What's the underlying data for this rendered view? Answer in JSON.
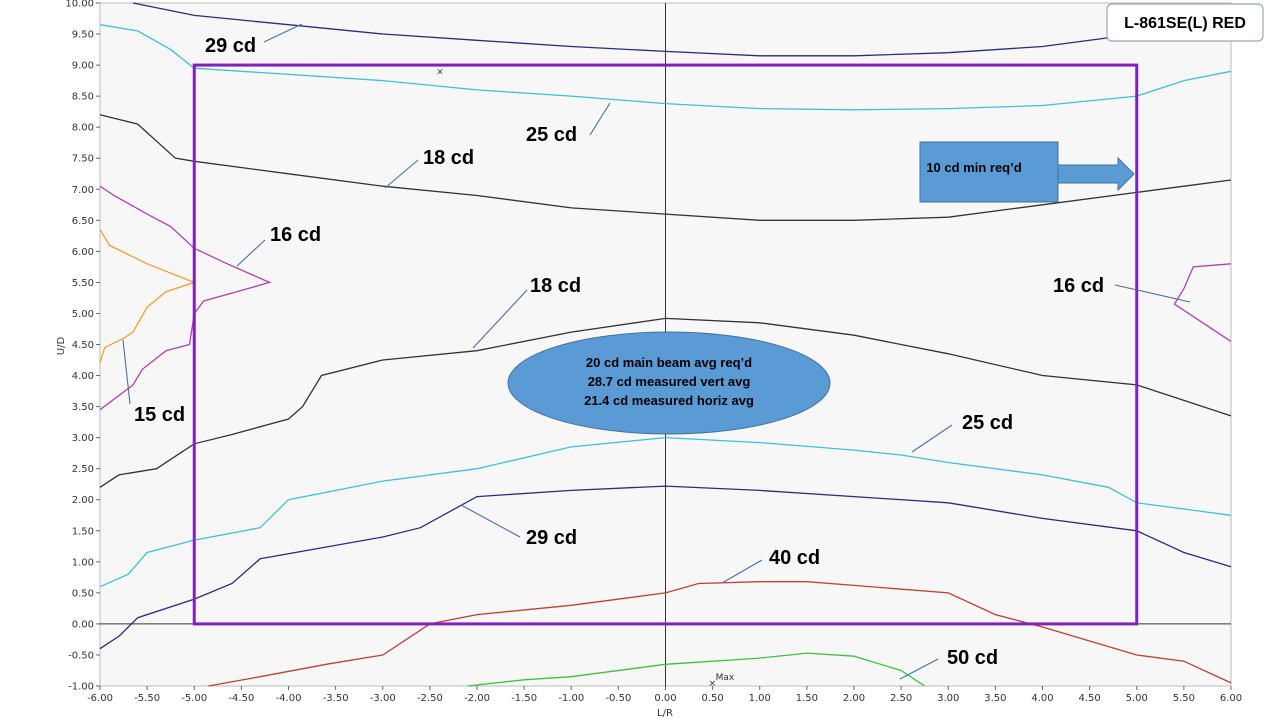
{
  "chart_data": {
    "type": "line",
    "title": "L-861SE(L) RED",
    "xlabel": "L/R",
    "ylabel": "U/D",
    "xlim": [
      -6,
      6
    ],
    "ylim": [
      -1,
      10
    ],
    "x_ticks": [
      "-6.00",
      "-5.50",
      "-5.00",
      "-4.50",
      "-4.00",
      "-3.50",
      "-3.00",
      "-2.50",
      "-2.00",
      "-1.50",
      "-1.00",
      "-0.50",
      "0.00",
      "0.50",
      "1.00",
      "1.50",
      "2.00",
      "2.50",
      "3.00",
      "3.50",
      "4.00",
      "4.50",
      "5.00",
      "5.50",
      "6.00"
    ],
    "y_ticks": [
      "-1.00",
      "-0.50",
      "0.00",
      "0.50",
      "1.00",
      "1.50",
      "2.00",
      "2.50",
      "3.00",
      "3.50",
      "4.00",
      "4.50",
      "5.00",
      "5.50",
      "6.00",
      "6.50",
      "7.00",
      "7.50",
      "8.00",
      "8.50",
      "9.00",
      "9.50",
      "10.00"
    ],
    "grid": false,
    "series": [
      {
        "name": "29 cd",
        "color": "#2b2b80",
        "points": [
          [
            -5.65,
            10
          ],
          [
            -5,
            9.8
          ],
          [
            -4,
            9.65
          ],
          [
            -3,
            9.5
          ],
          [
            -2,
            9.4
          ],
          [
            -1,
            9.3
          ],
          [
            0,
            9.22
          ],
          [
            1,
            9.15
          ],
          [
            2,
            9.15
          ],
          [
            3,
            9.2
          ],
          [
            4,
            9.3
          ],
          [
            5,
            9.5
          ],
          [
            5.4,
            9.6
          ]
        ]
      },
      {
        "name": "25 cd",
        "color": "#3ec0d8",
        "points": [
          [
            -6,
            9.65
          ],
          [
            -5.6,
            9.55
          ],
          [
            -5.25,
            9.25
          ],
          [
            -5,
            8.95
          ],
          [
            -4,
            8.85
          ],
          [
            -3,
            8.75
          ],
          [
            -2,
            8.6
          ],
          [
            -1,
            8.5
          ],
          [
            0,
            8.38
          ],
          [
            1,
            8.3
          ],
          [
            2,
            8.28
          ],
          [
            3,
            8.3
          ],
          [
            4,
            8.35
          ],
          [
            5,
            8.5
          ],
          [
            5.5,
            8.75
          ],
          [
            6,
            8.9
          ]
        ]
      },
      {
        "name": "18 cd",
        "color": "#333333",
        "points": [
          [
            -6,
            8.2
          ],
          [
            -5.6,
            8.05
          ],
          [
            -5.2,
            7.5
          ],
          [
            -5,
            7.45
          ],
          [
            -4,
            7.25
          ],
          [
            -3,
            7.05
          ],
          [
            -2,
            6.9
          ],
          [
            -1,
            6.7
          ],
          [
            0,
            6.6
          ],
          [
            1,
            6.5
          ],
          [
            2,
            6.5
          ],
          [
            3,
            6.55
          ],
          [
            4,
            6.75
          ],
          [
            5,
            6.95
          ],
          [
            5.5,
            7.05
          ],
          [
            6,
            7.15
          ]
        ]
      },
      {
        "name": "16 cd",
        "color": "#b040b0",
        "points": [
          [
            -6,
            7.05
          ],
          [
            -5.85,
            6.9
          ],
          [
            -5.5,
            6.6
          ],
          [
            -5.25,
            6.4
          ],
          [
            -5,
            6.05
          ],
          [
            -4.65,
            5.8
          ],
          [
            -4.2,
            5.5
          ],
          [
            -4.55,
            5.35
          ],
          [
            -4.9,
            5.2
          ],
          [
            -5,
            5.0
          ],
          [
            -5.05,
            4.5
          ],
          [
            -5.3,
            4.4
          ],
          [
            -5.55,
            4.1
          ],
          [
            -5.65,
            3.85
          ],
          [
            -6,
            3.45
          ]
        ]
      },
      {
        "name": "15 cd",
        "color": "#f0a030",
        "points": [
          [
            -6,
            6.35
          ],
          [
            -5.9,
            6.1
          ],
          [
            -5.5,
            5.8
          ],
          [
            -5.0,
            5.5
          ],
          [
            -5.3,
            5.35
          ],
          [
            -5.5,
            5.1
          ],
          [
            -5.65,
            4.7
          ],
          [
            -5.75,
            4.6
          ],
          [
            -5.95,
            4.45
          ],
          [
            -6,
            4.2
          ]
        ]
      },
      {
        "name": "16 cd",
        "color": "#b040b0",
        "points": [
          [
            6,
            5.8
          ],
          [
            5.6,
            5.75
          ],
          [
            5.5,
            5.4
          ],
          [
            5.4,
            5.15
          ],
          [
            5.6,
            4.95
          ],
          [
            6,
            4.55
          ]
        ]
      },
      {
        "name": "18 cd",
        "color": "#333333",
        "points": [
          [
            -6,
            2.2
          ],
          [
            -5.8,
            2.4
          ],
          [
            -5.4,
            2.5
          ],
          [
            -5,
            2.9
          ],
          [
            -4.6,
            3.05
          ],
          [
            -4,
            3.3
          ],
          [
            -3.85,
            3.5
          ],
          [
            -3.65,
            4.0
          ],
          [
            -3,
            4.25
          ],
          [
            -2,
            4.4
          ],
          [
            -1,
            4.7
          ],
          [
            0,
            4.92
          ],
          [
            1,
            4.85
          ],
          [
            2,
            4.65
          ],
          [
            3,
            4.35
          ],
          [
            4,
            4.0
          ],
          [
            5,
            3.85
          ],
          [
            5.5,
            3.6
          ],
          [
            6,
            3.35
          ]
        ]
      },
      {
        "name": "25 cd",
        "color": "#3ec0d8",
        "points": [
          [
            -6,
            0.6
          ],
          [
            -5.7,
            0.8
          ],
          [
            -5.5,
            1.15
          ],
          [
            -5,
            1.35
          ],
          [
            -4.3,
            1.55
          ],
          [
            -4,
            2.0
          ],
          [
            -3,
            2.3
          ],
          [
            -2,
            2.5
          ],
          [
            -1,
            2.85
          ],
          [
            0,
            3.0
          ],
          [
            1,
            2.92
          ],
          [
            2,
            2.8
          ],
          [
            2.5,
            2.72
          ],
          [
            3,
            2.6
          ],
          [
            4,
            2.4
          ],
          [
            4.7,
            2.2
          ],
          [
            5,
            1.95
          ],
          [
            5.5,
            1.85
          ],
          [
            6,
            1.75
          ]
        ]
      },
      {
        "name": "29 cd",
        "color": "#2b2b80",
        "points": [
          [
            -6,
            -0.4
          ],
          [
            -5.8,
            -0.2
          ],
          [
            -5.6,
            0.1
          ],
          [
            -5,
            0.4
          ],
          [
            -4.6,
            0.65
          ],
          [
            -4.3,
            1.05
          ],
          [
            -3,
            1.4
          ],
          [
            -2.6,
            1.55
          ],
          [
            -2,
            2.05
          ],
          [
            -1,
            2.15
          ],
          [
            0,
            2.22
          ],
          [
            1,
            2.15
          ],
          [
            2,
            2.05
          ],
          [
            3,
            1.95
          ],
          [
            4,
            1.7
          ],
          [
            5,
            1.5
          ],
          [
            5.5,
            1.15
          ],
          [
            6,
            0.92
          ]
        ]
      },
      {
        "name": "40 cd",
        "color": "#c04030",
        "points": [
          [
            -4.85,
            -1
          ],
          [
            -4.3,
            -0.85
          ],
          [
            -3.6,
            -0.65
          ],
          [
            -3,
            -0.5
          ],
          [
            -2.5,
            0.0
          ],
          [
            -2,
            0.15
          ],
          [
            -1,
            0.3
          ],
          [
            0,
            0.5
          ],
          [
            0.35,
            0.65
          ],
          [
            1,
            0.68
          ],
          [
            1.5,
            0.68
          ],
          [
            2,
            0.62
          ],
          [
            3,
            0.5
          ],
          [
            3.5,
            0.15
          ],
          [
            4,
            -0.05
          ],
          [
            5,
            -0.5
          ],
          [
            5.5,
            -0.6
          ],
          [
            6,
            -0.95
          ]
        ]
      },
      {
        "name": "50 cd",
        "color": "#40c040",
        "points": [
          [
            -2.1,
            -1
          ],
          [
            -1.5,
            -0.9
          ],
          [
            -1,
            -0.85
          ],
          [
            0,
            -0.65
          ],
          [
            1,
            -0.55
          ],
          [
            1.5,
            -0.47
          ],
          [
            2,
            -0.52
          ],
          [
            2.5,
            -0.75
          ],
          [
            2.75,
            -1
          ]
        ]
      }
    ],
    "annotations": [
      "29 cd",
      "25 cd",
      "18 cd",
      "16 cd",
      "18 cd",
      "16 cd",
      "15 cd",
      "25 cd",
      "29 cd",
      "40 cd",
      "50 cd"
    ],
    "max_marker": {
      "label": "Max",
      "x": 0.5,
      "y": -0.95
    },
    "x_marker": {
      "label": "×",
      "x": -2.4,
      "y": 8.9
    },
    "requirement_box": {
      "x": [
        -5,
        5
      ],
      "y": [
        0,
        9
      ],
      "color": "#8020c0"
    },
    "callouts": {
      "min_req": "10 cd min req’d",
      "ellipse": [
        "20 cd main beam avg req’d",
        "28.7 cd measured vert avg",
        "21.4 cd measured horiz avg"
      ]
    }
  }
}
